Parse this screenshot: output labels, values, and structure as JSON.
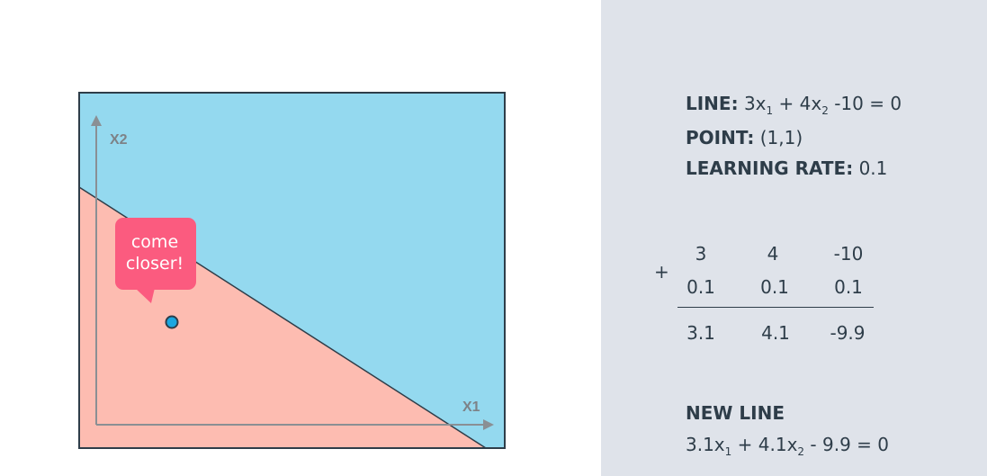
{
  "diagram": {
    "x_axis_label": "X1",
    "y_axis_label": "X2",
    "bubble_line1": "come",
    "bubble_line2": "closer!",
    "colors": {
      "positive_region": "#94d9ef",
      "negative_region": "#fdbcb1",
      "bubble": "#fb5b7f",
      "point": "#1aa6e0",
      "axis": "#8a8f94",
      "border": "#2e3d49"
    }
  },
  "info": {
    "line_label": "LINE:",
    "line_eq": {
      "c1": "3x",
      "s1": "1",
      "mid": " + 4x",
      "s2": "2",
      "end": " -10 = 0"
    },
    "point_label": "POINT:",
    "point_value": "(1,1)",
    "lr_label": "LEARNING RATE:",
    "lr_value": "0.1"
  },
  "calc": {
    "operator": "+",
    "row1": [
      "3",
      "4",
      "-10"
    ],
    "row2": [
      "0.1",
      "0.1",
      "0.1"
    ],
    "result": [
      "3.1",
      "4.1",
      "-9.9"
    ]
  },
  "new_line": {
    "label": "NEW LINE",
    "eq": {
      "c1": "3.1x",
      "s1": "1",
      "mid": " + 4.1x",
      "s2": "2",
      "end": " - 9.9 = 0"
    }
  }
}
